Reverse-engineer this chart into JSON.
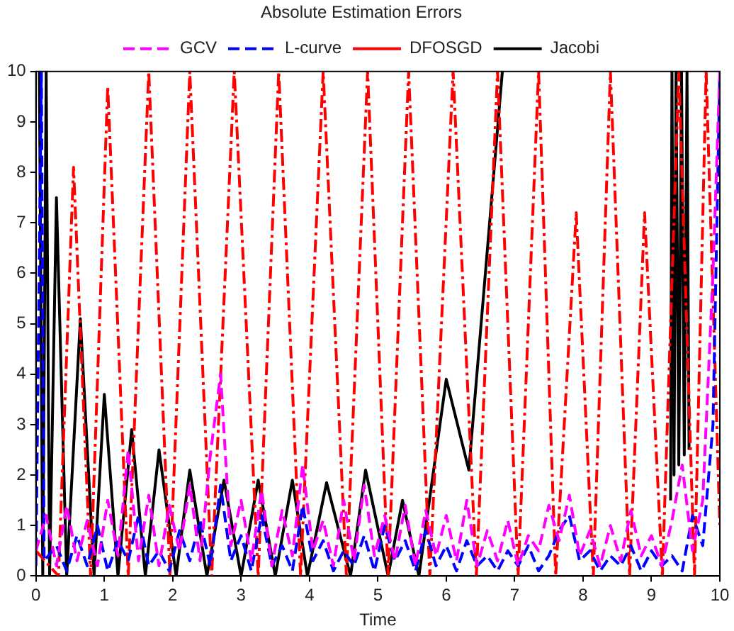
{
  "chart_data": {
    "type": "line",
    "title": "Absolute Estimation Errors",
    "xlabel": "Time",
    "xlim": [
      0,
      10
    ],
    "xticks": [
      0,
      1,
      2,
      3,
      4,
      5,
      6,
      7,
      8,
      9,
      10
    ],
    "ylim": [
      0,
      10
    ],
    "yticks": [
      0,
      1,
      2,
      3,
      4,
      5,
      6,
      7,
      8,
      9,
      10
    ],
    "grid": false,
    "legend": "top",
    "marker": "none",
    "series": [
      {
        "name": "GCV",
        "color": "#ff00ff",
        "line_style": "dashed",
        "x": [
          0,
          0.15,
          0.3,
          0.45,
          0.6,
          0.75,
          0.9,
          1.05,
          1.2,
          1.35,
          1.5,
          1.65,
          1.8,
          1.95,
          2.1,
          2.25,
          2.4,
          2.55,
          2.7,
          2.85,
          3.0,
          3.15,
          3.3,
          3.45,
          3.6,
          3.75,
          3.9,
          4.05,
          4.2,
          4.35,
          4.5,
          4.65,
          4.8,
          4.95,
          5.1,
          5.25,
          5.4,
          5.55,
          5.7,
          5.85,
          6.0,
          6.15,
          6.3,
          6.45,
          6.6,
          6.75,
          6.9,
          7.05,
          7.2,
          7.35,
          7.5,
          7.65,
          7.8,
          7.95,
          8.1,
          8.25,
          8.4,
          8.55,
          8.7,
          8.85,
          9.0,
          9.15,
          9.3,
          9.45,
          9.6,
          9.75,
          9.9,
          10
        ],
        "values": [
          0.5,
          1.2,
          0.2,
          1.4,
          0.3,
          1.1,
          0.2,
          1.5,
          0.4,
          2.5,
          0.3,
          1.6,
          0.2,
          1.4,
          0.5,
          1.8,
          0.3,
          2.4,
          4.0,
          0.6,
          1.5,
          0.3,
          1.7,
          0.2,
          1.3,
          0.4,
          2.2,
          0.5,
          1.1,
          0.2,
          1.5,
          0.3,
          1.8,
          0.4,
          1.2,
          0.3,
          1.4,
          0.2,
          1.3,
          0.4,
          1.2,
          0.3,
          1.5,
          0.2,
          0.9,
          0.3,
          1.1,
          0.2,
          0.8,
          0.5,
          1.4,
          0.7,
          1.6,
          0.4,
          0.9,
          0.2,
          1.0,
          0.3,
          1.3,
          0.4,
          0.8,
          0.2,
          1.1,
          2.2,
          0.5,
          1.5,
          6.0,
          10
        ]
      },
      {
        "name": "L-curve",
        "color": "#0000ff",
        "line_style": "dashed",
        "x": [
          0,
          0.08,
          0.12,
          0.3,
          0.45,
          0.6,
          0.75,
          0.9,
          1.05,
          1.2,
          1.35,
          1.5,
          1.65,
          1.8,
          1.95,
          2.1,
          2.25,
          2.4,
          2.55,
          2.7,
          2.85,
          3.0,
          3.15,
          3.3,
          3.45,
          3.6,
          3.75,
          3.9,
          4.05,
          4.2,
          4.35,
          4.5,
          4.65,
          4.8,
          4.95,
          5.1,
          5.25,
          5.4,
          5.55,
          5.7,
          5.85,
          6.0,
          6.15,
          6.3,
          6.45,
          6.6,
          6.75,
          6.9,
          7.05,
          7.2,
          7.35,
          7.5,
          7.65,
          7.8,
          7.95,
          8.1,
          8.25,
          8.4,
          8.55,
          8.7,
          8.85,
          9.0,
          9.15,
          9.3,
          9.45,
          9.6,
          9.75,
          9.9,
          10
        ],
        "values": [
          0.2,
          10,
          0.3,
          0.6,
          0.1,
          0.8,
          0.2,
          1.0,
          0.1,
          0.7,
          0.3,
          1.2,
          0.2,
          0.5,
          0.1,
          0.9,
          0.3,
          1.1,
          0.2,
          1.8,
          0.3,
          0.8,
          0.1,
          1.2,
          0.2,
          0.6,
          0.1,
          1.4,
          0.3,
          0.7,
          0.1,
          0.5,
          0.2,
          0.8,
          0.1,
          1.0,
          0.3,
          0.7,
          0.1,
          0.9,
          0.2,
          0.6,
          0.1,
          0.7,
          0.2,
          0.4,
          0.1,
          0.5,
          0.2,
          0.6,
          0.1,
          0.4,
          0.9,
          1.2,
          0.3,
          0.5,
          0.1,
          0.4,
          0.2,
          0.6,
          0.1,
          0.5,
          0.2,
          0.4,
          0.1,
          1.2,
          0.6,
          3.0,
          10
        ]
      },
      {
        "name": "DFOSGD",
        "color": "#ff0000",
        "line_style": "dashdot",
        "x": [
          0,
          0.33,
          0.55,
          0.8,
          1.05,
          1.35,
          1.65,
          1.96,
          2.25,
          2.57,
          2.9,
          3.25,
          3.55,
          3.87,
          4.2,
          4.54,
          4.85,
          5.15,
          5.45,
          5.76,
          6.1,
          6.44,
          6.75,
          7.05,
          7.35,
          7.6,
          7.9,
          8.15,
          8.4,
          8.68,
          8.9,
          9.16,
          9.4,
          9.63,
          9.8,
          10
        ],
        "values": [
          0.5,
          0,
          8.1,
          0,
          9.7,
          0,
          10,
          0,
          10,
          0,
          10,
          0,
          10,
          0,
          10,
          0,
          10,
          0,
          10,
          0,
          10,
          0,
          10,
          0,
          10,
          0,
          7.2,
          0,
          10,
          0,
          7.2,
          0,
          10,
          0,
          10,
          1
        ]
      },
      {
        "name": "Jacobi",
        "color": "#000000",
        "line_style": "solid",
        "x": [
          0.05,
          0.1,
          0.15,
          0.2,
          0.3,
          0.45,
          0.65,
          0.85,
          1.0,
          1.2,
          1.4,
          1.6,
          1.8,
          2.05,
          2.25,
          2.5,
          2.75,
          3.0,
          3.25,
          3.5,
          3.75,
          3.97,
          4.25,
          4.6,
          4.82,
          5.15,
          5.36,
          5.6,
          6.0,
          6.33,
          6.82,
          6.9,
          9.28,
          9.3,
          9.33,
          9.36,
          9.4,
          9.44,
          9.48,
          9.52,
          9.55
        ],
        "values": [
          10,
          0,
          10,
          0,
          7.5,
          0,
          5.1,
          0,
          3.6,
          0,
          2.9,
          0,
          2.5,
          0,
          2.1,
          0,
          1.9,
          0,
          1.9,
          0,
          1.9,
          0,
          1.85,
          0,
          2.1,
          0,
          1.5,
          0,
          3.9,
          2.1,
          10,
          null,
          1.5,
          10,
          2.0,
          10,
          2.2,
          10,
          2.4,
          10,
          2.5
        ]
      }
    ]
  }
}
